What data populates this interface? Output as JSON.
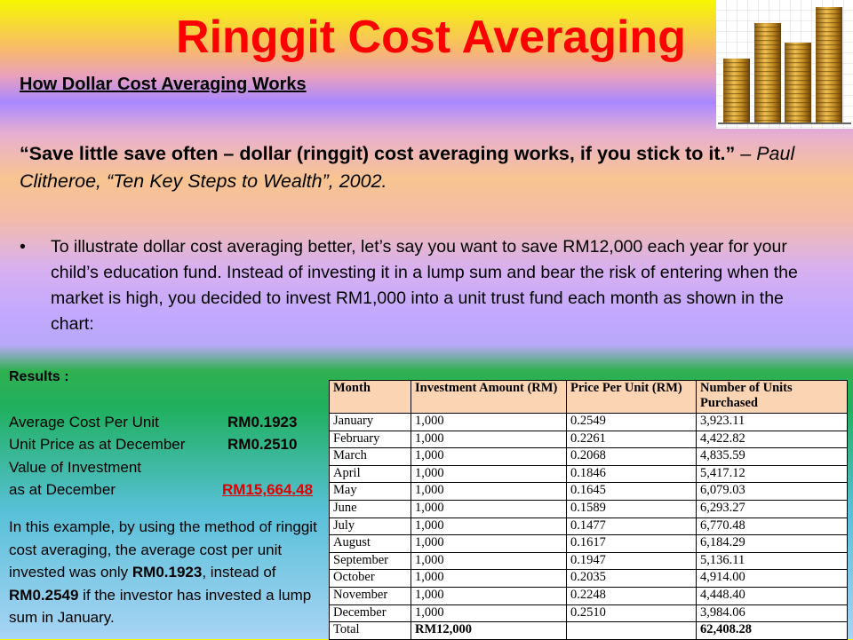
{
  "title": "Ringgit Cost Averaging",
  "subtitle": "How Dollar Cost Averaging Works",
  "quote": {
    "text": "“Save little save often – dollar (ringgit) cost averaging works, if you stick to it.”",
    "dash": "–",
    "attribution": "Paul Clitheroe, “Ten Key Steps to Wealth”, 2002."
  },
  "bullet": "To illustrate dollar cost averaging better, let’s say you want to save RM12,000 each year for your child’s education fund. Instead of investing it in a lump sum and bear the risk of entering when the market is high, you decided to invest RM1,000 into a unit trust fund each month as shown in the chart:",
  "results": {
    "heading": "Results :",
    "items": [
      {
        "label": "Average Cost Per Unit",
        "value": "RM0.1923"
      },
      {
        "label": "Unit Price as at December",
        "value": "RM0.2510"
      },
      {
        "label": "Value of Investment"
      },
      {
        "label": "as at December",
        "value": "RM15,664.48"
      }
    ],
    "paragraph": [
      "In this example, by using the method of ringgit cost averaging, the average cost per unit invested was only ",
      "RM0.1923",
      ", instead of ",
      "RM0.2549",
      " if the investor has invested a lump sum in January."
    ]
  },
  "table": {
    "header": [
      "Month",
      "Investment Amount (RM)",
      "Price Per Unit (RM)",
      "Number of Units Purchased"
    ],
    "rows": [
      [
        "January",
        "1,000",
        "0.2549",
        "3,923.11"
      ],
      [
        "February",
        "1,000",
        "0.2261",
        "4,422.82"
      ],
      [
        "March",
        "1,000",
        "0.2068",
        "4,835.59"
      ],
      [
        "April",
        "1,000",
        "0.1846",
        "5,417.12"
      ],
      [
        "May",
        "1,000",
        "0.1645",
        "6,079.03"
      ],
      [
        "June",
        "1,000",
        "0.1589",
        "6,293.27"
      ],
      [
        "July",
        "1,000",
        "0.1477",
        "6,770.48"
      ],
      [
        "August",
        "1,000",
        "0.1617",
        "6,184.29"
      ],
      [
        "September",
        "1,000",
        "0.1947",
        "5,136.11"
      ],
      [
        "October",
        "1,000",
        "0.2035",
        "4,914.00"
      ],
      [
        "November",
        "1,000",
        "0.2248",
        "4,448.40"
      ],
      [
        "December",
        "1,000",
        "0.2510",
        "3,984.06"
      ],
      [
        "Total",
        "RM12,000",
        "",
        "62,408.28"
      ]
    ]
  }
}
